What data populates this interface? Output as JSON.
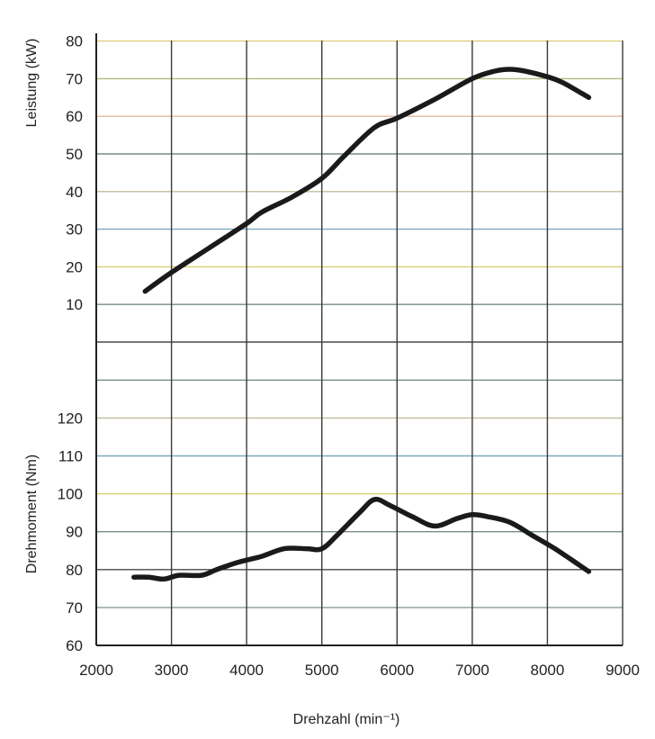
{
  "chart_data": [
    {
      "type": "line",
      "name": "power",
      "ylabel": "Leistung (kW)",
      "xlabel": "Drehzahl (min⁻¹)",
      "xlim": [
        2000,
        9000
      ],
      "ylim": [
        0,
        80
      ],
      "x_ticks": [
        "2000",
        "3000",
        "4000",
        "5000",
        "6000",
        "7000",
        "8000",
        "9000"
      ],
      "y_ticks": [
        "10",
        "20",
        "30",
        "40",
        "50",
        "60",
        "70",
        "80"
      ],
      "grid": true,
      "series": [
        {
          "name": "Leistung",
          "x": [
            2650,
            3000,
            3500,
            4000,
            4200,
            4600,
            5000,
            5300,
            5700,
            6000,
            6500,
            7000,
            7300,
            7500,
            7700,
            8000,
            8200,
            8550
          ],
          "values": [
            13.5,
            18.5,
            25,
            31.5,
            34.5,
            38.5,
            43.5,
            49.5,
            57,
            59.5,
            64.5,
            70,
            72,
            72.5,
            72,
            70.5,
            69,
            65
          ]
        }
      ]
    },
    {
      "type": "line",
      "name": "torque",
      "ylabel": "Drehmoment (Nm)",
      "xlabel": "Drehzahl (min⁻¹)",
      "xlim": [
        2000,
        9000
      ],
      "ylim": [
        60,
        140
      ],
      "x_ticks": [
        "2000",
        "3000",
        "4000",
        "5000",
        "6000",
        "7000",
        "8000",
        "9000"
      ],
      "y_ticks": [
        "60",
        "70",
        "80",
        "90",
        "100",
        "110",
        "120"
      ],
      "grid": true,
      "series": [
        {
          "name": "Drehmoment",
          "x": [
            2500,
            2700,
            2900,
            3100,
            3400,
            3600,
            3900,
            4200,
            4500,
            4800,
            5000,
            5200,
            5500,
            5700,
            5900,
            6200,
            6500,
            6800,
            7000,
            7200,
            7500,
            7800,
            8100,
            8550
          ],
          "values": [
            78,
            78,
            77.5,
            78.5,
            78.5,
            80,
            82,
            83.5,
            85.5,
            85.5,
            85.5,
            89,
            95,
            98.5,
            97,
            94,
            91.5,
            93.5,
            94.5,
            94,
            92.5,
            89,
            85.5,
            79.5
          ]
        }
      ]
    }
  ],
  "grid_line_colors": [
    "#4a4a4a",
    "#7a8a8a",
    "#d8d070",
    "#7aaac0",
    "#c2bb9a",
    "#7a8a8a",
    "#e0b8a0",
    "#b8b880",
    "#e0d080",
    "#8a9898"
  ]
}
